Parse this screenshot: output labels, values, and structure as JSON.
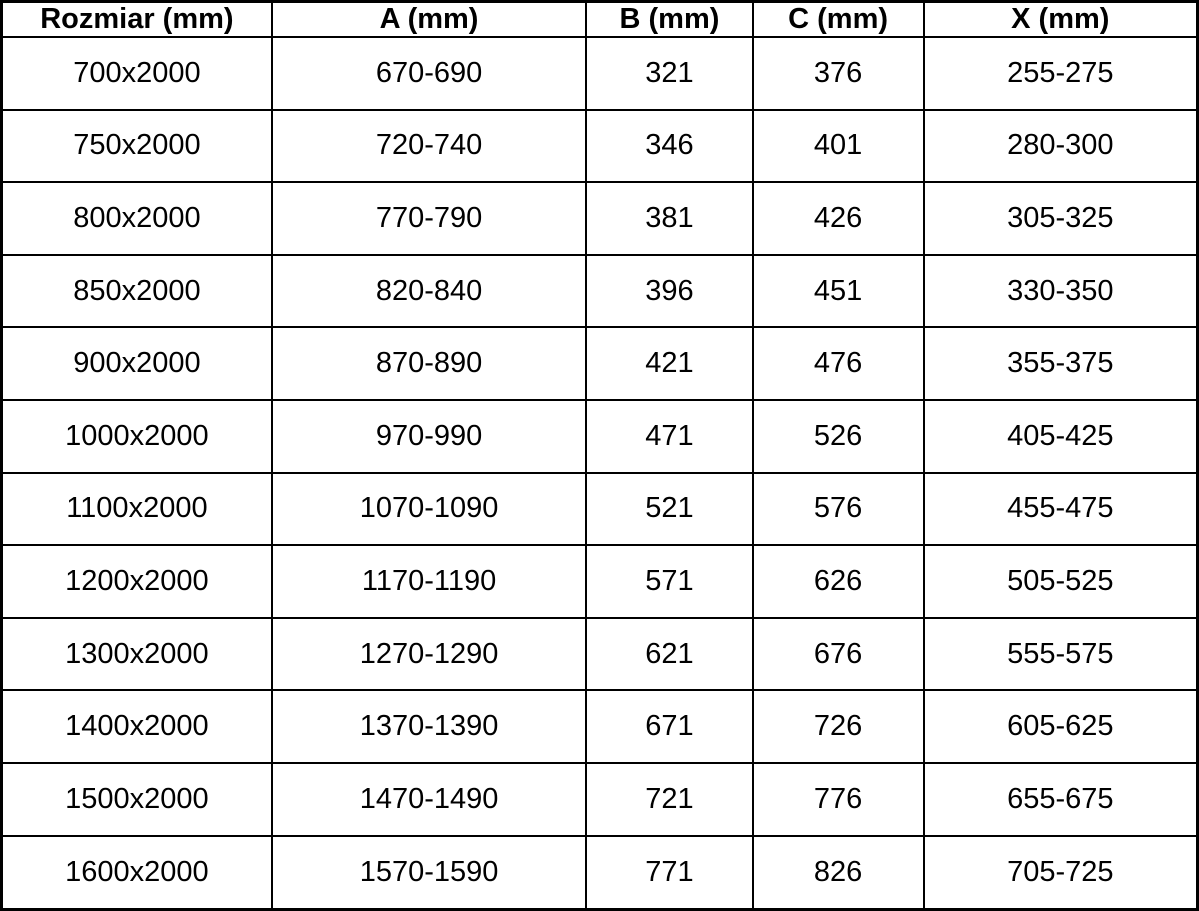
{
  "colors": {
    "background": "#ffffff",
    "border": "#000000",
    "text": "#000000"
  },
  "table": {
    "headers": [
      "Rozmiar (mm)",
      "A (mm)",
      "B (mm)",
      "C (mm)",
      "X (mm)"
    ],
    "rows": [
      [
        "700x2000",
        "670-690",
        "321",
        "376",
        "255-275"
      ],
      [
        "750x2000",
        "720-740",
        "346",
        "401",
        "280-300"
      ],
      [
        "800x2000",
        "770-790",
        "381",
        "426",
        "305-325"
      ],
      [
        "850x2000",
        "820-840",
        "396",
        "451",
        "330-350"
      ],
      [
        "900x2000",
        "870-890",
        "421",
        "476",
        "355-375"
      ],
      [
        "1000x2000",
        "970-990",
        "471",
        "526",
        "405-425"
      ],
      [
        "1100x2000",
        "1070-1090",
        "521",
        "576",
        "455-475"
      ],
      [
        "1200x2000",
        "1170-1190",
        "571",
        "626",
        "505-525"
      ],
      [
        "1300x2000",
        "1270-1290",
        "621",
        "676",
        "555-575"
      ],
      [
        "1400x2000",
        "1370-1390",
        "671",
        "726",
        "605-625"
      ],
      [
        "1500x2000",
        "1470-1490",
        "721",
        "776",
        "655-675"
      ],
      [
        "1600x2000",
        "1570-1590",
        "771",
        "826",
        "705-725"
      ]
    ]
  },
  "chart_data": {
    "type": "table",
    "title": "",
    "columns": [
      "Rozmiar (mm)",
      "A (mm)",
      "B (mm)",
      "C (mm)",
      "X (mm)"
    ],
    "rows": [
      [
        "700x2000",
        "670-690",
        321,
        376,
        "255-275"
      ],
      [
        "750x2000",
        "720-740",
        346,
        401,
        "280-300"
      ],
      [
        "800x2000",
        "770-790",
        381,
        426,
        "305-325"
      ],
      [
        "850x2000",
        "820-840",
        396,
        451,
        "330-350"
      ],
      [
        "900x2000",
        "870-890",
        421,
        476,
        "355-375"
      ],
      [
        "1000x2000",
        "970-990",
        471,
        526,
        "405-425"
      ],
      [
        "1100x2000",
        "1070-1090",
        521,
        576,
        "455-475"
      ],
      [
        "1200x2000",
        "1170-1190",
        571,
        626,
        "505-525"
      ],
      [
        "1300x2000",
        "1270-1290",
        621,
        676,
        "555-575"
      ],
      [
        "1400x2000",
        "1370-1390",
        671,
        726,
        "605-625"
      ],
      [
        "1500x2000",
        "1470-1490",
        721,
        776,
        "655-675"
      ],
      [
        "1600x2000",
        "1570-1590",
        771,
        826,
        "705-725"
      ]
    ]
  }
}
